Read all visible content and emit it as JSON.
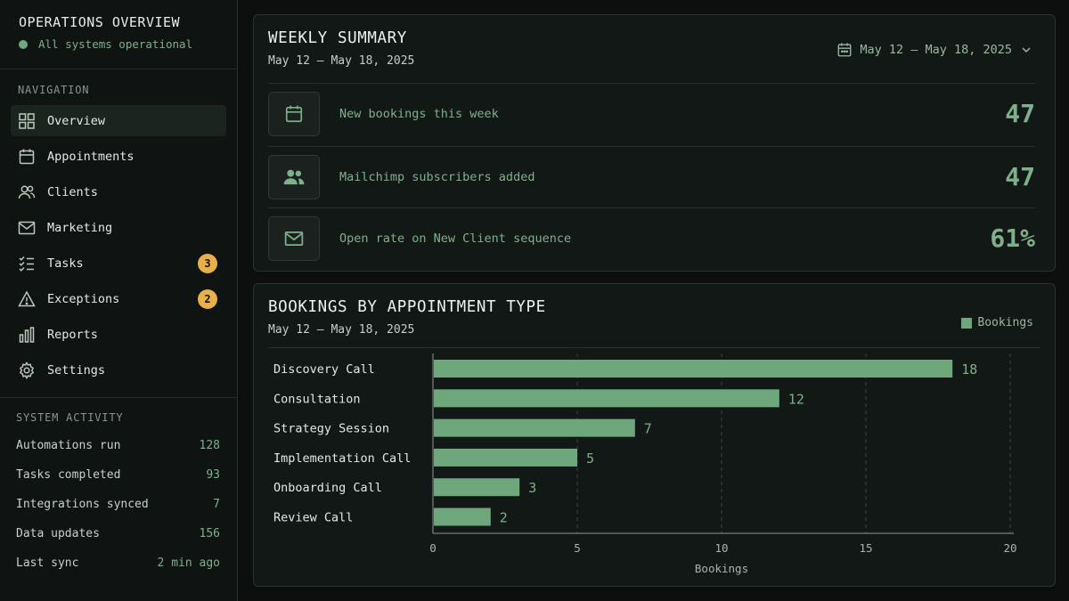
{
  "sidebar": {
    "title": "OPERATIONS OVERVIEW",
    "status": "All systems operational",
    "nav_label": "NAVIGATION",
    "items": [
      {
        "label": "Overview",
        "icon": "grid-icon",
        "active": true
      },
      {
        "label": "Appointments",
        "icon": "calendar-icon"
      },
      {
        "label": "Clients",
        "icon": "users-icon"
      },
      {
        "label": "Marketing",
        "icon": "mail-icon"
      },
      {
        "label": "Tasks",
        "icon": "checklist-icon",
        "badge": "3"
      },
      {
        "label": "Exceptions",
        "icon": "warning-icon",
        "badge": "2"
      },
      {
        "label": "Reports",
        "icon": "bar-chart-icon"
      },
      {
        "label": "Settings",
        "icon": "gear-icon"
      }
    ],
    "activity_label": "SYSTEM ACTIVITY",
    "activity": [
      {
        "label": "Automations run",
        "value": "128"
      },
      {
        "label": "Tasks completed",
        "value": "93"
      },
      {
        "label": "Integrations synced",
        "value": "7"
      },
      {
        "label": "Data updates",
        "value": "156"
      },
      {
        "label": "Last sync",
        "value": "2 min ago"
      }
    ]
  },
  "summary": {
    "title": "WEEKLY SUMMARY",
    "subtitle": "May 12 – May 18, 2025",
    "date_range": "May 12 – May 18, 2025",
    "metrics": [
      {
        "label": "New bookings this week",
        "value": "47",
        "icon": "calendar-icon"
      },
      {
        "label": "Mailchimp subscribers added",
        "value": "47",
        "icon": "users-icon"
      },
      {
        "label": "Open rate on New Client sequence",
        "value": "61%",
        "icon": "mail-icon"
      }
    ]
  },
  "bookings": {
    "title": "BOOKINGS BY APPOINTMENT TYPE",
    "subtitle": "May 12 – May 18, 2025"
  },
  "colors": {
    "accent": "#6fa77d",
    "badge": "#e8b04a",
    "background": "#0c0f0e"
  },
  "chart_data": {
    "type": "bar",
    "orientation": "horizontal",
    "categories": [
      "Discovery Call",
      "Consultation",
      "Strategy Session",
      "Implementation Call",
      "Onboarding Call",
      "Review Call"
    ],
    "series": [
      {
        "name": "Bookings",
        "values": [
          18,
          12,
          7,
          5,
          3,
          2
        ]
      }
    ],
    "xlabel": "Bookings",
    "xlim": [
      0,
      20
    ],
    "xticks": [
      0,
      5,
      10,
      15,
      20
    ],
    "grid": "vertical dashed",
    "legend": "top-right"
  }
}
